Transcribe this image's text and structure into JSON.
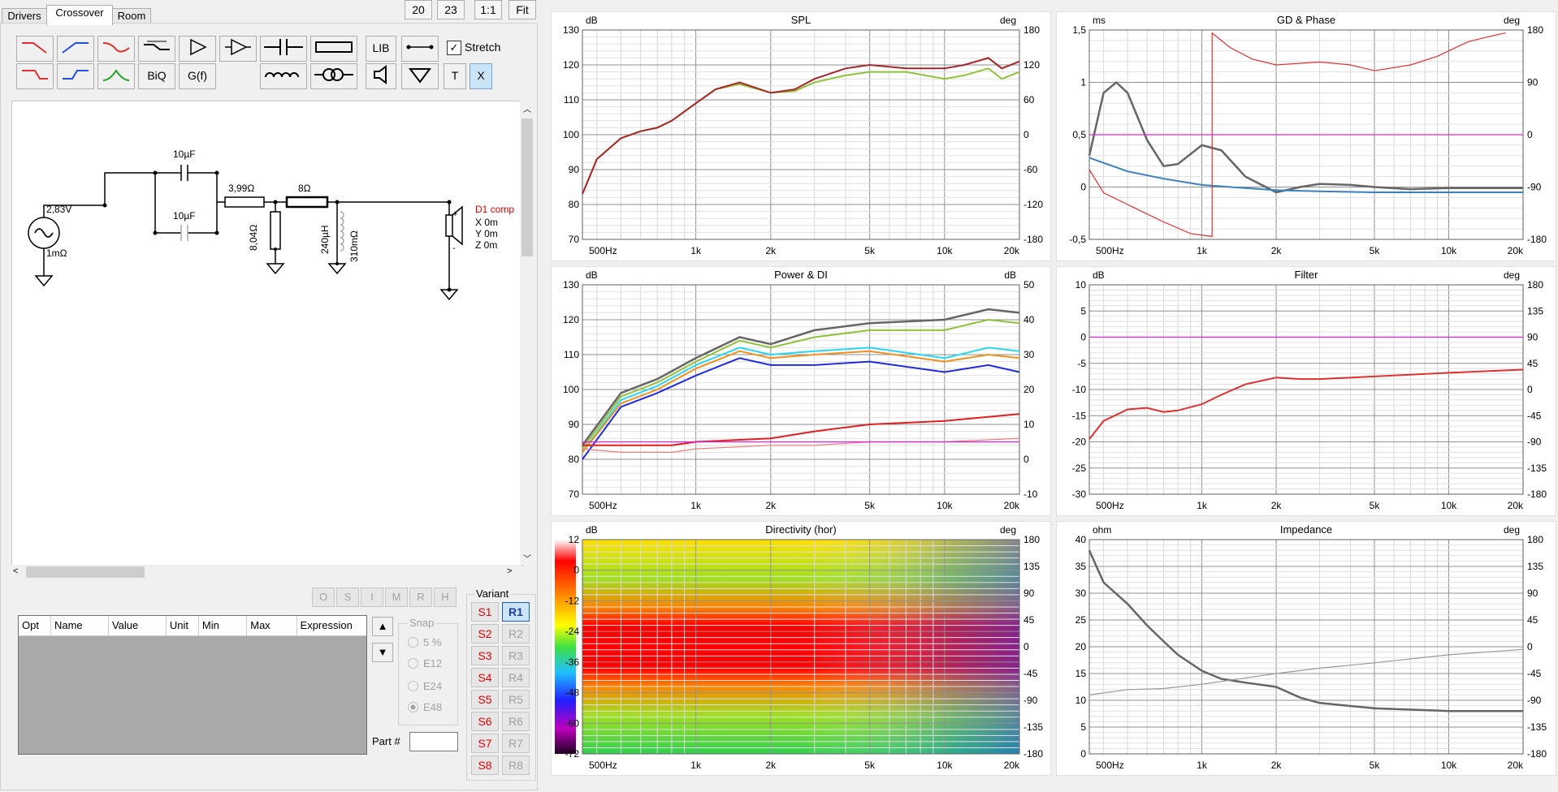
{
  "tabs": [
    "Drivers",
    "Crossover",
    "Room"
  ],
  "top_buttons": [
    "20",
    "23",
    "1:1",
    "Fit"
  ],
  "toolbar": {
    "lib": "LIB",
    "stretch": "Stretch",
    "biq": "BiQ",
    "gf": "G(f)",
    "t": "T",
    "x": "X"
  },
  "schematic": {
    "source_voltage": "2,83V",
    "source_res": "1mΩ",
    "cap1": "10µF",
    "cap2": "10µF",
    "res1": "3,99Ω",
    "res2": "8Ω",
    "res3": "8,04Ω",
    "ind": "240µH",
    "ind_res": "310mΩ",
    "driver": "D1 comp",
    "dx": "X 0m",
    "dy": "Y 0m",
    "dz": "Z 0m"
  },
  "param_table": {
    "columns": [
      "Opt",
      "Name",
      "Value",
      "Unit",
      "Min",
      "Max",
      "Expression"
    ]
  },
  "opt_buttons": [
    "O",
    "S",
    "I",
    "M",
    "R",
    "H"
  ],
  "snap": {
    "label": "Snap",
    "options": [
      "5 %",
      "E12",
      "E24",
      "E48"
    ],
    "selected": "E48"
  },
  "part_label": "Part #",
  "variant": {
    "label": "Variant",
    "s": [
      "S1",
      "S2",
      "S3",
      "S4",
      "S5",
      "S6",
      "S7",
      "S8"
    ],
    "r": [
      "R1",
      "R2",
      "R3",
      "R4",
      "R5",
      "R6",
      "R7",
      "R8"
    ],
    "selected": "R1"
  },
  "chart_data": [
    {
      "type": "line",
      "title": "SPL",
      "ylabel": "dB",
      "y2label": "deg",
      "yticks": [
        "130",
        "120",
        "110",
        "100",
        "90",
        "80",
        "70"
      ],
      "y2ticks": [
        "180",
        "120",
        "60",
        "0",
        "-60",
        "-120",
        "-180"
      ],
      "xticks": [
        "500Hz",
        "1k",
        "2k",
        "5k",
        "10k",
        "20k"
      ],
      "series": [
        {
          "color": "#8fc23a",
          "x": [
            300,
            400,
            500,
            600,
            700,
            800,
            1000,
            1200,
            1500,
            2000,
            2500,
            3000,
            4000,
            5000,
            7000,
            10000,
            12000,
            15000,
            17000,
            20000
          ],
          "y": [
            83,
            93,
            99,
            101,
            102,
            104,
            109,
            113,
            114.5,
            112,
            112.5,
            115,
            117,
            118,
            118,
            116,
            117,
            119,
            116,
            118
          ]
        },
        {
          "color": "#a8262a",
          "x": [
            300,
            400,
            500,
            600,
            700,
            800,
            1000,
            1200,
            1500,
            2000,
            2500,
            3000,
            4000,
            5000,
            7000,
            10000,
            12000,
            15000,
            17000,
            20000
          ],
          "y": [
            83,
            93,
            99,
            101,
            102,
            104,
            109,
            113,
            115,
            112,
            113,
            116,
            119,
            120,
            119,
            119,
            120,
            122,
            119,
            121
          ]
        }
      ]
    },
    {
      "type": "line",
      "title": "GD & Phase",
      "ylabel": "ms",
      "y2label": "deg",
      "yticks": [
        "1,5",
        "1",
        "0,5",
        "0",
        "-0,5"
      ],
      "y2ticks": [
        "180",
        "90",
        "0",
        "-90",
        "-180"
      ],
      "xticks": [
        "500Hz",
        "1k",
        "2k",
        "5k",
        "10k",
        "20k"
      ],
      "series": [
        {
          "color": "#666666",
          "x": [
            300,
            400,
            450,
            500,
            600,
            700,
            800,
            1000,
            1200,
            1500,
            2000,
            2500,
            3000,
            4000,
            5000,
            7000,
            10000,
            15000,
            20000
          ],
          "y": [
            0.3,
            0.9,
            1.0,
            0.9,
            0.45,
            0.2,
            0.22,
            0.4,
            0.35,
            0.1,
            -0.05,
            0.0,
            0.03,
            0.02,
            0.0,
            -0.02,
            -0.01,
            -0.01,
            -0.01
          ]
        },
        {
          "color": "#3a7fc0",
          "x": [
            300,
            500,
            700,
            1000,
            1500,
            2000,
            3000,
            5000,
            10000,
            20000
          ],
          "y": [
            0.28,
            0.15,
            0.08,
            0.02,
            -0.01,
            -0.03,
            -0.04,
            -0.05,
            -0.05,
            -0.05
          ]
        },
        {
          "color": "#e03030",
          "x": [
            300,
            400,
            500,
            700,
            900,
            1100,
            1100,
            1300,
            1600,
            2000,
            3000,
            4000,
            5000,
            7000,
            9000,
            12000,
            15000,
            17000
          ],
          "y": [
            -60,
            -100,
            -120,
            -150,
            -170,
            -175,
            175,
            150,
            130,
            120,
            125,
            120,
            110,
            120,
            135,
            160,
            170,
            175
          ]
        },
        {
          "color": "#e020e0",
          "x": [
            300,
            20000
          ],
          "y": [
            0.5,
            0.5
          ]
        }
      ]
    },
    {
      "type": "line",
      "title": "Power & DI",
      "ylabel": "dB",
      "y2label": "dB",
      "yticks": [
        "130",
        "120",
        "110",
        "100",
        "90",
        "80",
        "70"
      ],
      "y2ticks": [
        "50",
        "40",
        "30",
        "20",
        "10",
        "0",
        "-10"
      ],
      "xticks": [
        "500Hz",
        "1k",
        "2k",
        "5k",
        "10k",
        "20k"
      ],
      "series": [
        {
          "color": "#666666",
          "x": [
            300,
            500,
            700,
            1000,
            1500,
            2000,
            3000,
            5000,
            10000,
            15000,
            20000
          ],
          "y": [
            84,
            99,
            103,
            109,
            115,
            113,
            117,
            119,
            120,
            123,
            122
          ]
        },
        {
          "color": "#8fc23a",
          "x": [
            300,
            500,
            700,
            1000,
            1500,
            2000,
            3000,
            5000,
            10000,
            15000,
            20000
          ],
          "y": [
            83,
            98,
            102,
            108,
            114,
            112,
            115,
            117,
            117,
            120,
            119
          ]
        },
        {
          "color": "#28d8f0",
          "x": [
            300,
            500,
            700,
            1000,
            1500,
            2000,
            3000,
            5000,
            10000,
            15000,
            20000
          ],
          "y": [
            82,
            97,
            101,
            107,
            112,
            110,
            111,
            112,
            109,
            112,
            111
          ]
        },
        {
          "color": "#f09020",
          "x": [
            300,
            500,
            700,
            1000,
            1500,
            2000,
            3000,
            5000,
            10000,
            15000,
            20000
          ],
          "y": [
            82,
            96,
            100,
            106,
            111,
            109,
            110,
            111,
            108,
            110,
            109
          ]
        },
        {
          "color": "#1f2be0",
          "x": [
            300,
            500,
            700,
            1000,
            1500,
            2000,
            3000,
            5000,
            10000,
            15000,
            20000
          ],
          "y": [
            80,
            95,
            99,
            104,
            109,
            107,
            107,
            108,
            105,
            107,
            105
          ]
        },
        {
          "color": "#e02020",
          "x": [
            300,
            500,
            800,
            1000,
            2000,
            3000,
            5000,
            10000,
            20000
          ],
          "y": [
            84,
            84,
            84,
            85,
            86,
            88,
            90,
            91,
            93
          ]
        },
        {
          "color": "#f07a7a",
          "x": [
            300,
            500,
            800,
            1000,
            2000,
            3000,
            5000,
            10000,
            20000
          ],
          "y": [
            83,
            82,
            82,
            83,
            84,
            84,
            85,
            85,
            86
          ]
        },
        {
          "color": "#e020e0",
          "x": [
            300,
            20000
          ],
          "y": [
            85,
            85
          ]
        }
      ]
    },
    {
      "type": "line",
      "title": "Filter",
      "ylabel": "dB",
      "y2label": "deg",
      "yticks": [
        "10",
        "5",
        "0",
        "-5",
        "-10",
        "-15",
        "-20",
        "-25",
        "-30"
      ],
      "y2ticks": [
        "180",
        "135",
        "90",
        "45",
        "0",
        "-45",
        "-90",
        "-135",
        "-180"
      ],
      "xticks": [
        "500Hz",
        "1k",
        "2k",
        "5k",
        "10k",
        "20k"
      ],
      "series": [
        {
          "color": "#e020e0",
          "x": [
            300,
            20000
          ],
          "y": [
            0,
            0
          ]
        },
        {
          "color": "#e03030",
          "x": [
            300,
            400,
            500,
            600,
            700,
            800,
            1000,
            1200,
            1500,
            2000,
            2500,
            3000,
            5000,
            10000,
            20000
          ],
          "y": [
            -19.5,
            -16,
            -13.8,
            -13.5,
            -14.3,
            -14,
            -12.8,
            -11,
            -9,
            -7.7,
            -8,
            -8,
            -7.5,
            -6.8,
            -6.2
          ]
        }
      ]
    },
    {
      "type": "heatmap",
      "title": "Directivity (hor)",
      "ylabel": "dB",
      "y2label": "deg",
      "yticks": [
        "12",
        "0",
        "-12",
        "-24",
        "-36",
        "-48",
        "-60",
        "-72"
      ],
      "y2ticks": [
        "180",
        "135",
        "90",
        "45",
        "0",
        "-45",
        "-90",
        "-135",
        "-180"
      ],
      "xticks": [
        "500Hz",
        "1k",
        "2k",
        "5k",
        "10k",
        "20k"
      ]
    },
    {
      "type": "line",
      "title": "Impedance",
      "ylabel": "ohm",
      "y2label": "deg",
      "yticks": [
        "40",
        "35",
        "30",
        "25",
        "20",
        "15",
        "10",
        "5",
        "0"
      ],
      "y2ticks": [
        "180",
        "135",
        "90",
        "45",
        "0",
        "-45",
        "-90",
        "-135",
        "-180"
      ],
      "xticks": [
        "500Hz",
        "1k",
        "2k",
        "5k",
        "10k",
        "20k"
      ],
      "series": [
        {
          "color": "#666666",
          "x": [
            300,
            400,
            500,
            600,
            700,
            800,
            1000,
            1200,
            1500,
            2000,
            2500,
            3000,
            5000,
            10000,
            15000,
            20000
          ],
          "y": [
            38,
            32,
            28,
            24,
            21,
            18.5,
            15.5,
            14,
            13.3,
            12.5,
            10.5,
            9.5,
            8.5,
            8,
            8,
            8
          ]
        },
        {
          "color": "#999999",
          "x": [
            300,
            500,
            700,
            1000,
            2000,
            3000,
            5000,
            10000,
            20000
          ],
          "y": [
            11,
            12,
            12.2,
            13,
            15,
            16,
            17,
            18.5,
            19.5
          ]
        }
      ]
    }
  ]
}
